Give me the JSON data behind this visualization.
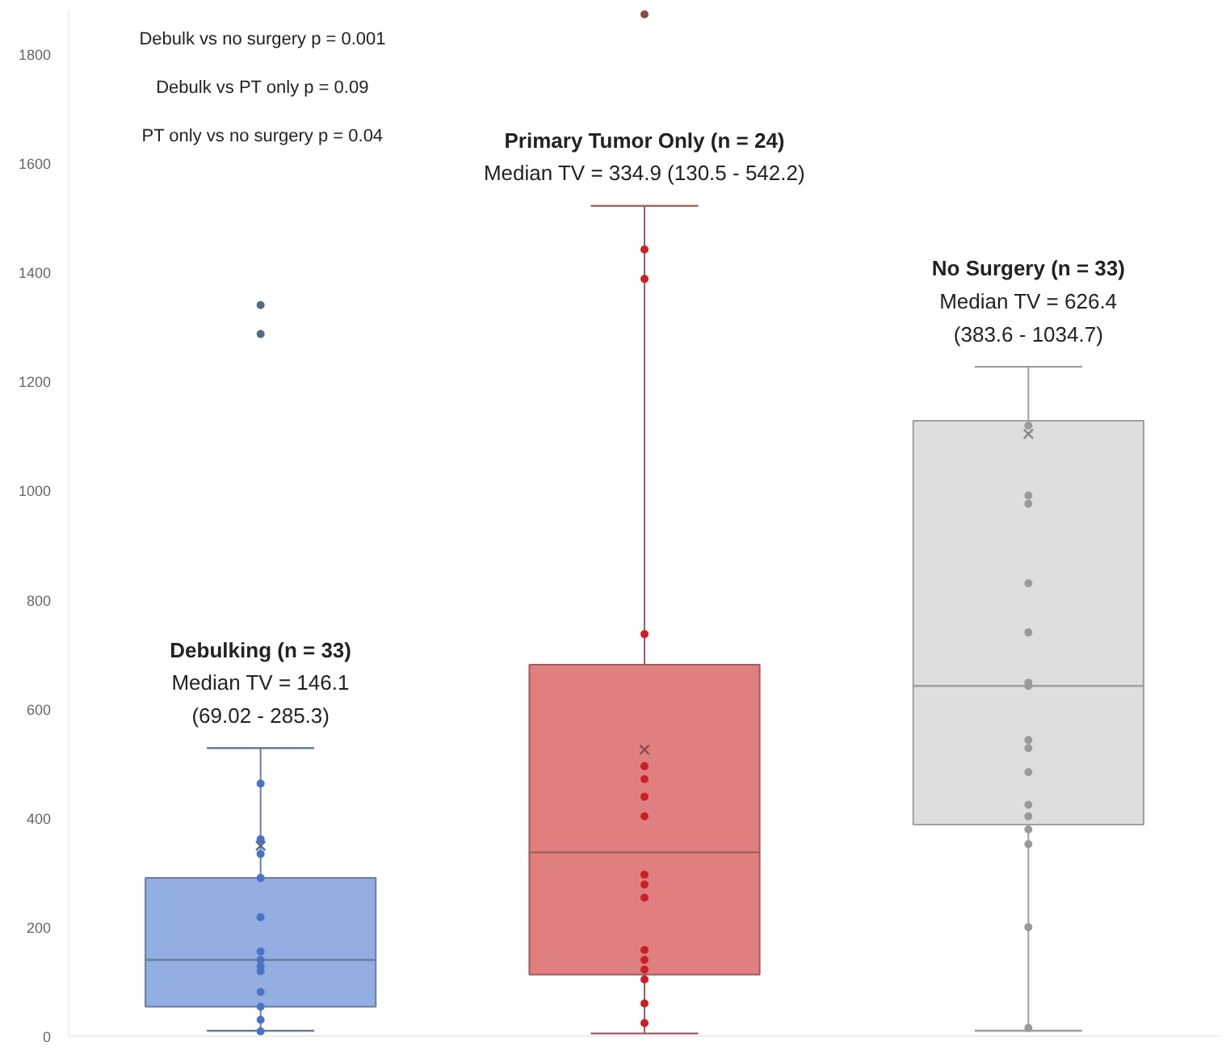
{
  "chart_data": {
    "type": "box",
    "categories": [
      null,
      null,
      null
    ],
    "boxes": [
      {
        "low": 10,
        "q1": 54,
        "median": 140,
        "q3": 290,
        "high": 528,
        "mean": 349,
        "outliers": [
          1287,
          1340
        ]
      },
      {
        "low": 5,
        "q1": 113,
        "median": 337,
        "q3": 681,
        "high": 1522,
        "mean": 525,
        "outliers": [
          1873
        ]
      },
      {
        "low": 10,
        "q1": 388,
        "median": 642,
        "q3": 1128,
        "high": 1227,
        "mean": 1104
      }
    ],
    "colors": [
      "#93aee0",
      "#e07f80",
      "#dedede"
    ],
    "series": [
      {
        "type": "scatter",
        "colors": [
          "#4a73c4",
          "#c8202a",
          "#9a9a9a"
        ],
        "values": [
          463,
          1442,
          1119
        ]
      },
      {
        "type": "scatter",
        "colors": [
          "#4a73c4",
          "#c8202a",
          "#9a9a9a"
        ],
        "values": [
          361,
          1388,
          991
        ]
      },
      {
        "type": "scatter",
        "colors": [
          "#4a73c4",
          "#c8202a",
          "#9a9a9a"
        ],
        "values": [
          334,
          737,
          976
        ]
      },
      {
        "type": "scatter",
        "colors": [
          "#4a73c4",
          "#c8202a",
          "#9a9a9a"
        ],
        "values": [
          290,
          495,
          830
        ]
      },
      {
        "type": "scatter",
        "colors": [
          "#4a73c4",
          "#c8202a",
          "#9a9a9a"
        ],
        "values": [
          218,
          471,
          740
        ]
      },
      {
        "type": "scatter",
        "colors": [
          "#4a73c4",
          "#c8202a",
          "#9a9a9a"
        ],
        "values": [
          155,
          439,
          648
        ]
      },
      {
        "type": "scatter",
        "colors": [
          "#4a73c4",
          "#c8202a",
          "#9a9a9a"
        ],
        "values": [
          140,
          403,
          642
        ]
      },
      {
        "type": "scatter",
        "colors": [
          "#4a73c4",
          "#c8202a",
          "#9a9a9a"
        ],
        "values": [
          128,
          296,
          543
        ]
      },
      {
        "type": "scatter",
        "colors": [
          "#4a73c4",
          "#c8202a",
          "#9a9a9a"
        ],
        "values": [
          119,
          278,
          528
        ]
      },
      {
        "type": "scatter",
        "colors": [
          "#4a73c4",
          "#c8202a",
          "#9a9a9a"
        ],
        "values": [
          81,
          254,
          484
        ]
      },
      {
        "type": "scatter",
        "colors": [
          "#4a73c4",
          "#c8202a",
          "#9a9a9a"
        ],
        "values": [
          54,
          158,
          424
        ]
      },
      {
        "type": "scatter",
        "colors": [
          "#4a73c4",
          "#c8202a",
          "#9a9a9a"
        ],
        "values": [
          30,
          140,
          403
        ]
      },
      {
        "type": "scatter",
        "colors": [
          "#4a73c4",
          "#c8202a",
          "#9a9a9a"
        ],
        "values": [
          9,
          122,
          379
        ]
      },
      {
        "type": "scatter",
        "colors": [
          "#4a73c4",
          "#c8202a",
          "#9a9a9a"
        ],
        "values": [
          null,
          104,
          352
        ]
      },
      {
        "type": "scatter",
        "colors": [
          "#4a73c4",
          "#c8202a",
          "#9a9a9a"
        ],
        "values": [
          null,
          60,
          200
        ]
      },
      {
        "type": "scatter",
        "colors": [
          "#4a73c4",
          "#c8202a",
          "#9a9a9a"
        ],
        "values": [
          null,
          24,
          15
        ]
      }
    ],
    "ylim": [
      0,
      1880
    ],
    "yticks": [
      0,
      200,
      400,
      600,
      800,
      1000,
      1200,
      1400,
      1600,
      1800
    ],
    "tick_labels": "y",
    "grid": false,
    "marker": "circle",
    "annotations": [
      "Debulk vs no surgery p = 0.001",
      "Debulk vs PT only p = 0.09",
      "PT only vs no surgery p = 0.04",
      "Debulking (n = 33)\nMedian TV = 146.1\n(69.02 - 285.3)",
      "Primary Tumor Only (n = 24)\nMedian TV = 334.9 (130.5 - 542.2)",
      "No Surgery (n = 33)\nMedian TV = 626.4\n(383.6 - 1034.7)"
    ]
  }
}
